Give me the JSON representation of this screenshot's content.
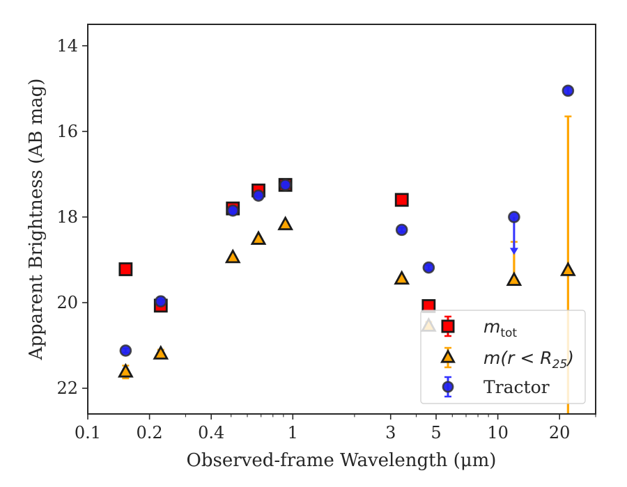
{
  "chart_data": {
    "type": "scatter",
    "title": "",
    "xlabel": "Observed-frame Wavelength (μm)",
    "ylabel": "Apparent Brightness (AB mag)",
    "xscale": "log",
    "xlim": [
      0.1,
      30
    ],
    "ylim": [
      22.6,
      13.5
    ],
    "y_inverted": true,
    "x_ticks": [
      {
        "value": 0.1,
        "label": "0.1"
      },
      {
        "value": 0.2,
        "label": "0.2"
      },
      {
        "value": 0.4,
        "label": "0.4"
      },
      {
        "value": 1,
        "label": "1"
      },
      {
        "value": 3,
        "label": "3"
      },
      {
        "value": 5,
        "label": "5"
      },
      {
        "value": 10,
        "label": "10"
      },
      {
        "value": 20,
        "label": "20"
      }
    ],
    "y_ticks": [
      {
        "value": 14,
        "label": "14"
      },
      {
        "value": 16,
        "label": "16"
      },
      {
        "value": 18,
        "label": "18"
      },
      {
        "value": 20,
        "label": "20"
      },
      {
        "value": 22,
        "label": "22"
      }
    ],
    "grid": false,
    "legend_position": "lower-right",
    "series": [
      {
        "key": "mtot",
        "legend_main": "m",
        "legend_sub": "tot",
        "legend_suffix": "",
        "marker": "square",
        "color": "#ff0000",
        "edge": "#1a1a1a",
        "err_color": "#ff0000",
        "points": [
          {
            "x": 0.153,
            "y": 19.22,
            "err": 0.05
          },
          {
            "x": 0.227,
            "y": 20.07,
            "err": 0.08
          },
          {
            "x": 0.51,
            "y": 17.8,
            "err": 0.05
          },
          {
            "x": 0.68,
            "y": 17.38,
            "err": 0.05
          },
          {
            "x": 0.92,
            "y": 17.25,
            "err": 0.05
          },
          {
            "x": 3.4,
            "y": 17.6,
            "err": 0.05
          },
          {
            "x": 4.6,
            "y": 20.08,
            "err": 0.06
          }
        ]
      },
      {
        "key": "mr25",
        "legend_main": "m(r < R",
        "legend_sub": "25",
        "legend_suffix": ")",
        "marker": "triangle",
        "color": "#ffa500",
        "edge": "#1a1a1a",
        "err_color": "#ffa500",
        "points": [
          {
            "x": 0.153,
            "y": 21.62,
            "err": 0.15
          },
          {
            "x": 0.227,
            "y": 21.2,
            "err": 0.1
          },
          {
            "x": 0.51,
            "y": 18.95,
            "err": 0.05
          },
          {
            "x": 0.68,
            "y": 18.52,
            "err": 0.05
          },
          {
            "x": 0.92,
            "y": 18.18,
            "err": 0.05
          },
          {
            "x": 3.4,
            "y": 19.45,
            "err": 0.05
          },
          {
            "x": 4.6,
            "y": 20.55,
            "err": 0.1
          },
          {
            "x": 12,
            "y": 19.48,
            "err_low": 0.9,
            "err_high": 0.1
          },
          {
            "x": 22,
            "y": 19.25,
            "err_low": 3.6,
            "err_high": 4.2
          }
        ]
      },
      {
        "key": "tractor",
        "legend_main": "Tractor",
        "legend_sub": "",
        "legend_suffix": "",
        "marker": "circle",
        "color": "#2222ee",
        "edge": "#333333",
        "err_color": "#3333ff",
        "points": [
          {
            "x": 0.153,
            "y": 21.12,
            "err": 0.05
          },
          {
            "x": 0.227,
            "y": 19.97,
            "err": 0.1
          },
          {
            "x": 0.51,
            "y": 17.85,
            "err": 0.05
          },
          {
            "x": 0.68,
            "y": 17.5,
            "err": 0.05
          },
          {
            "x": 0.92,
            "y": 17.25,
            "err": 0.05
          },
          {
            "x": 3.4,
            "y": 18.3,
            "err": 0.05
          },
          {
            "x": 4.6,
            "y": 19.18,
            "err": 0.06
          },
          {
            "x": 12,
            "y": 18.0,
            "upper_limit_to": 18.85
          },
          {
            "x": 22,
            "y": 15.05,
            "err": 0.08
          }
        ]
      }
    ]
  }
}
